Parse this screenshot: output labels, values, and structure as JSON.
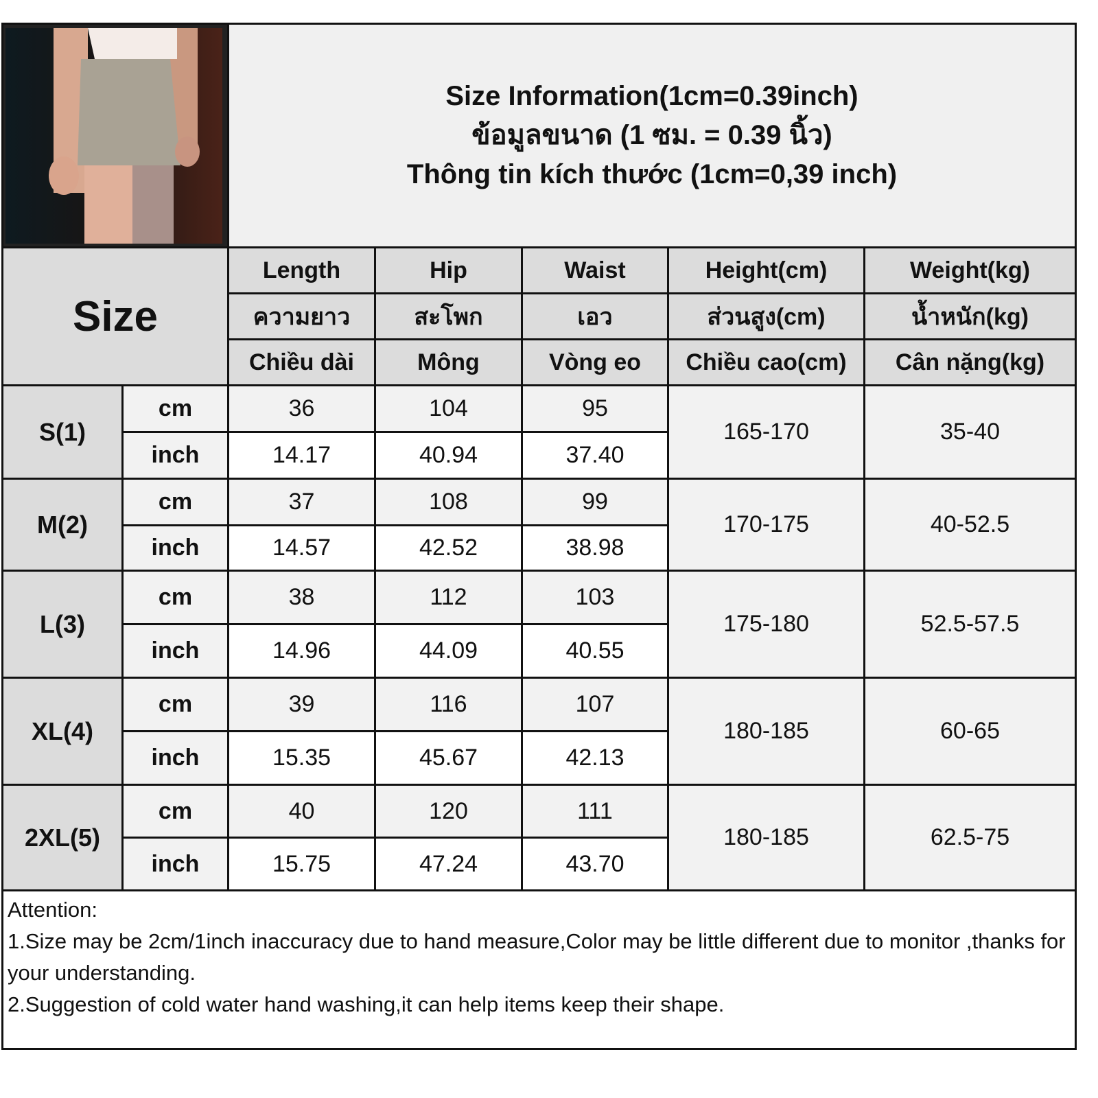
{
  "title_lines": [
    "Size Information(1cm=0.39inch)",
    "ข้อมูลขนาด (1 ซม. = 0.39 นิ้ว)",
    "Thông tin kích thước (1cm=0,39 inch)"
  ],
  "size_label": "Size",
  "headers": [
    {
      "en": "Length",
      "th": "ความยาว",
      "vi": "Chiều dài"
    },
    {
      "en": "Hip",
      "th": "สะโพก",
      "vi": "Mông"
    },
    {
      "en": "Waist",
      "th": "เอว",
      "vi": "Vòng eo"
    },
    {
      "en": "Height(cm)",
      "th": "ส่วนสูง(cm)",
      "vi": "Chiều cao(cm)"
    },
    {
      "en": "Weight(kg)",
      "th": "น้ำหนัก(kg)",
      "vi": "Cân nặng(kg)"
    }
  ],
  "units": {
    "cm": "cm",
    "inch": "inch"
  },
  "rows": [
    {
      "size": "S(1)",
      "cm": [
        "36",
        "104",
        "95"
      ],
      "inch": [
        "14.17",
        "40.94",
        "37.40"
      ],
      "height": "165-170",
      "weight": "35-40"
    },
    {
      "size": "M(2)",
      "cm": [
        "37",
        "108",
        "99"
      ],
      "inch": [
        "14.57",
        "42.52",
        "38.98"
      ],
      "height": "170-175",
      "weight": "40-52.5"
    },
    {
      "size": "L(3)",
      "cm": [
        "38",
        "112",
        "103"
      ],
      "inch": [
        "14.96",
        "44.09",
        "40.55"
      ],
      "height": "175-180",
      "weight": "52.5-57.5"
    },
    {
      "size": "XL(4)",
      "cm": [
        "39",
        "116",
        "107"
      ],
      "inch": [
        "15.35",
        "45.67",
        "42.13"
      ],
      "height": "180-185",
      "weight": "60-65"
    },
    {
      "size": "2XL(5)",
      "cm": [
        "40",
        "120",
        "111"
      ],
      "inch": [
        "15.75",
        "47.24",
        "43.70"
      ],
      "height": "180-185",
      "weight": "62.5-75"
    }
  ],
  "attention": [
    "Attention:",
    "1.Size may be 2cm/1inch inaccuracy due to hand measure,Color may be little different due to monitor ,thanks for your understanding.",
    "2.Suggestion of cold water hand washing,it can help items keep their shape."
  ]
}
